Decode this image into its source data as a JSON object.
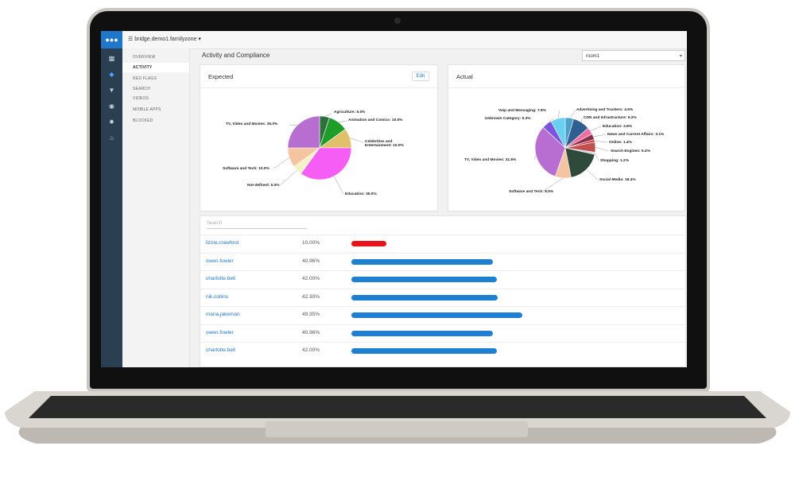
{
  "app": {
    "domain": "bridge.demo1.familyzone"
  },
  "nav": {
    "items": [
      "OVERVIEW",
      "ACTIVITY",
      "RED FLAGS",
      "SEARCH",
      "VIDEOS",
      "MOBILE APPS",
      "BLOCKED"
    ],
    "active": "ACTIVITY"
  },
  "page": {
    "title": "Activity and Compliance",
    "room": "room1"
  },
  "expected": {
    "title": "Expected",
    "edit_label": "Edit",
    "chart_data": {
      "type": "pie",
      "slices": [
        {
          "label": "Agriculture: 5.0%",
          "value": 5.0,
          "color": "#2f6f3e"
        },
        {
          "label": "Animation and Comics: 10.0%",
          "value": 10.0,
          "color": "#1f9d2a"
        },
        {
          "label": "Celebrities and Entertainment: 10.0%",
          "value": 10.0,
          "color": "#e0c06a"
        },
        {
          "label": "Education: 35.0%",
          "value": 35.0,
          "color": "#f55df5"
        },
        {
          "label": "Not-defined: 5.0%",
          "value": 5.0,
          "color": "#f5f0c8"
        },
        {
          "label": "Software and Tech: 10.0%",
          "value": 10.0,
          "color": "#f5c4a0"
        },
        {
          "label": "TV, Video and Movies: 25.0%",
          "value": 25.0,
          "color": "#b86ed0"
        }
      ]
    }
  },
  "actual": {
    "title": "Actual",
    "chart_data": {
      "type": "pie",
      "slices": [
        {
          "label": "Advertising and Trackers: 4.5%",
          "value": 4.5,
          "color": "#4aa0c8"
        },
        {
          "label": "CDN and Infrastructure: 9.2%",
          "value": 9.2,
          "color": "#2f5f90"
        },
        {
          "label": "Education: 3.8%",
          "value": 3.8,
          "color": "#f06fa0"
        },
        {
          "label": "News and Current Affairs: 3.1%",
          "value": 3.1,
          "color": "#8a2f4a"
        },
        {
          "label": "Online: 1.4%",
          "value": 1.4,
          "color": "#d23a3a"
        },
        {
          "label": "Search Engines: 5.4%",
          "value": 5.4,
          "color": "#c05050"
        },
        {
          "label": "Shopping: 1.2%",
          "value": 1.2,
          "color": "#d8d0e8"
        },
        {
          "label": "Social Media: 18.4%",
          "value": 18.4,
          "color": "#2f4a3a"
        },
        {
          "label": "Software and Tech: 8.5%",
          "value": 8.5,
          "color": "#f5c4a0"
        },
        {
          "label": "TV, Video and Movies: 31.6%",
          "value": 31.6,
          "color": "#b86ed0"
        },
        {
          "label": "Unknown Category: 5.3%",
          "value": 5.3,
          "color": "#7a55e0"
        },
        {
          "label": "Voip and Messaging: 7.8%",
          "value": 7.8,
          "color": "#6ad0f0"
        }
      ]
    }
  },
  "users": {
    "search_placeholder": "Search",
    "rows": [
      {
        "name": "lizzie.crawford",
        "pct": "10.00%",
        "value": 10.0,
        "color": "#e8131b"
      },
      {
        "name": "owen.fowler",
        "pct": "40.96%",
        "value": 40.96,
        "color": "#1f7fd0"
      },
      {
        "name": "charlotte.belt",
        "pct": "42.00%",
        "value": 42.0,
        "color": "#1f7fd0"
      },
      {
        "name": "nik.collins",
        "pct": "42.30%",
        "value": 42.3,
        "color": "#1f7fd0"
      },
      {
        "name": "maria.jakeman",
        "pct": "49.35%",
        "value": 49.35,
        "color": "#1f7fd0"
      },
      {
        "name": "owen.fowler",
        "pct": "40.96%",
        "value": 40.96,
        "color": "#1f7fd0"
      },
      {
        "name": "charlotte.belt",
        "pct": "42.00%",
        "value": 42.0,
        "color": "#1f7fd0"
      }
    ]
  }
}
